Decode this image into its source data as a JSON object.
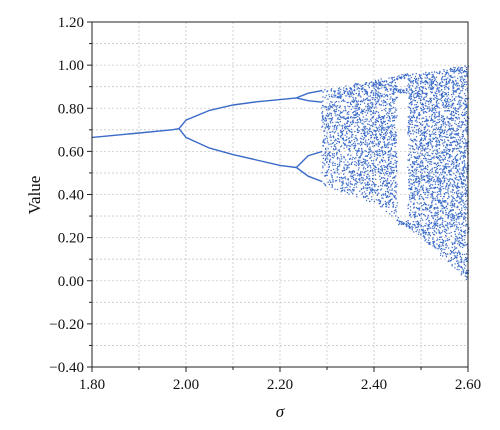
{
  "chart_data": {
    "type": "scatter",
    "title": "",
    "xlabel": "σ",
    "ylabel": "Value",
    "xlim": [
      1.8,
      2.6
    ],
    "ylim": [
      -0.4,
      1.2
    ],
    "grid": true,
    "x_ticks": [
      "1.80",
      "2.00",
      "2.20",
      "2.40",
      "2.60"
    ],
    "x_tick_values": [
      1.8,
      2.0,
      2.2,
      2.4,
      2.6
    ],
    "y_ticks": [
      "−0.40",
      "−0.20",
      "0.00",
      "0.20",
      "0.40",
      "0.60",
      "0.80",
      "1.00",
      "1.20"
    ],
    "y_tick_values": [
      -0.4,
      -0.2,
      0.0,
      0.2,
      0.4,
      0.6,
      0.8,
      1.0,
      1.2
    ],
    "series": [
      {
        "kind": "fixed-point",
        "x": [
          1.8,
          1.9,
          1.97,
          1.985
        ],
        "y": [
          0.665,
          0.685,
          0.7,
          0.705
        ]
      },
      {
        "kind": "period-2-upper",
        "x": [
          1.985,
          2.0,
          2.05,
          2.1,
          2.15,
          2.2,
          2.235
        ],
        "y": [
          0.705,
          0.745,
          0.79,
          0.815,
          0.83,
          0.84,
          0.848
        ]
      },
      {
        "kind": "period-2-lower",
        "x": [
          1.985,
          2.0,
          2.05,
          2.1,
          2.15,
          2.2,
          2.235
        ],
        "y": [
          0.705,
          0.665,
          0.615,
          0.585,
          0.56,
          0.535,
          0.525
        ]
      },
      {
        "kind": "period-4-upper-a",
        "x": [
          2.235,
          2.26,
          2.29
        ],
        "y": [
          0.848,
          0.87,
          0.882
        ]
      },
      {
        "kind": "period-4-upper-b",
        "x": [
          2.235,
          2.26,
          2.29
        ],
        "y": [
          0.848,
          0.835,
          0.828
        ]
      },
      {
        "kind": "period-4-lower-a",
        "x": [
          2.235,
          2.26,
          2.29
        ],
        "y": [
          0.525,
          0.58,
          0.6
        ]
      },
      {
        "kind": "period-4-lower-b",
        "x": [
          2.235,
          2.26,
          2.29
        ],
        "y": [
          0.525,
          0.485,
          0.46
        ]
      }
    ],
    "chaotic_region": {
      "x_start": 2.29,
      "x_end": 2.6,
      "upper_envelope": [
        [
          2.29,
          0.885
        ],
        [
          2.4,
          0.93
        ],
        [
          2.5,
          0.965
        ],
        [
          2.6,
          1.0
        ]
      ],
      "lower_envelope": [
        [
          2.29,
          0.44
        ],
        [
          2.4,
          0.36
        ],
        [
          2.5,
          0.2
        ],
        [
          2.6,
          0.0
        ]
      ]
    },
    "colors": {
      "data": "#3a6bc8",
      "frame": "#222222",
      "grid": "#c8c8c8"
    }
  }
}
